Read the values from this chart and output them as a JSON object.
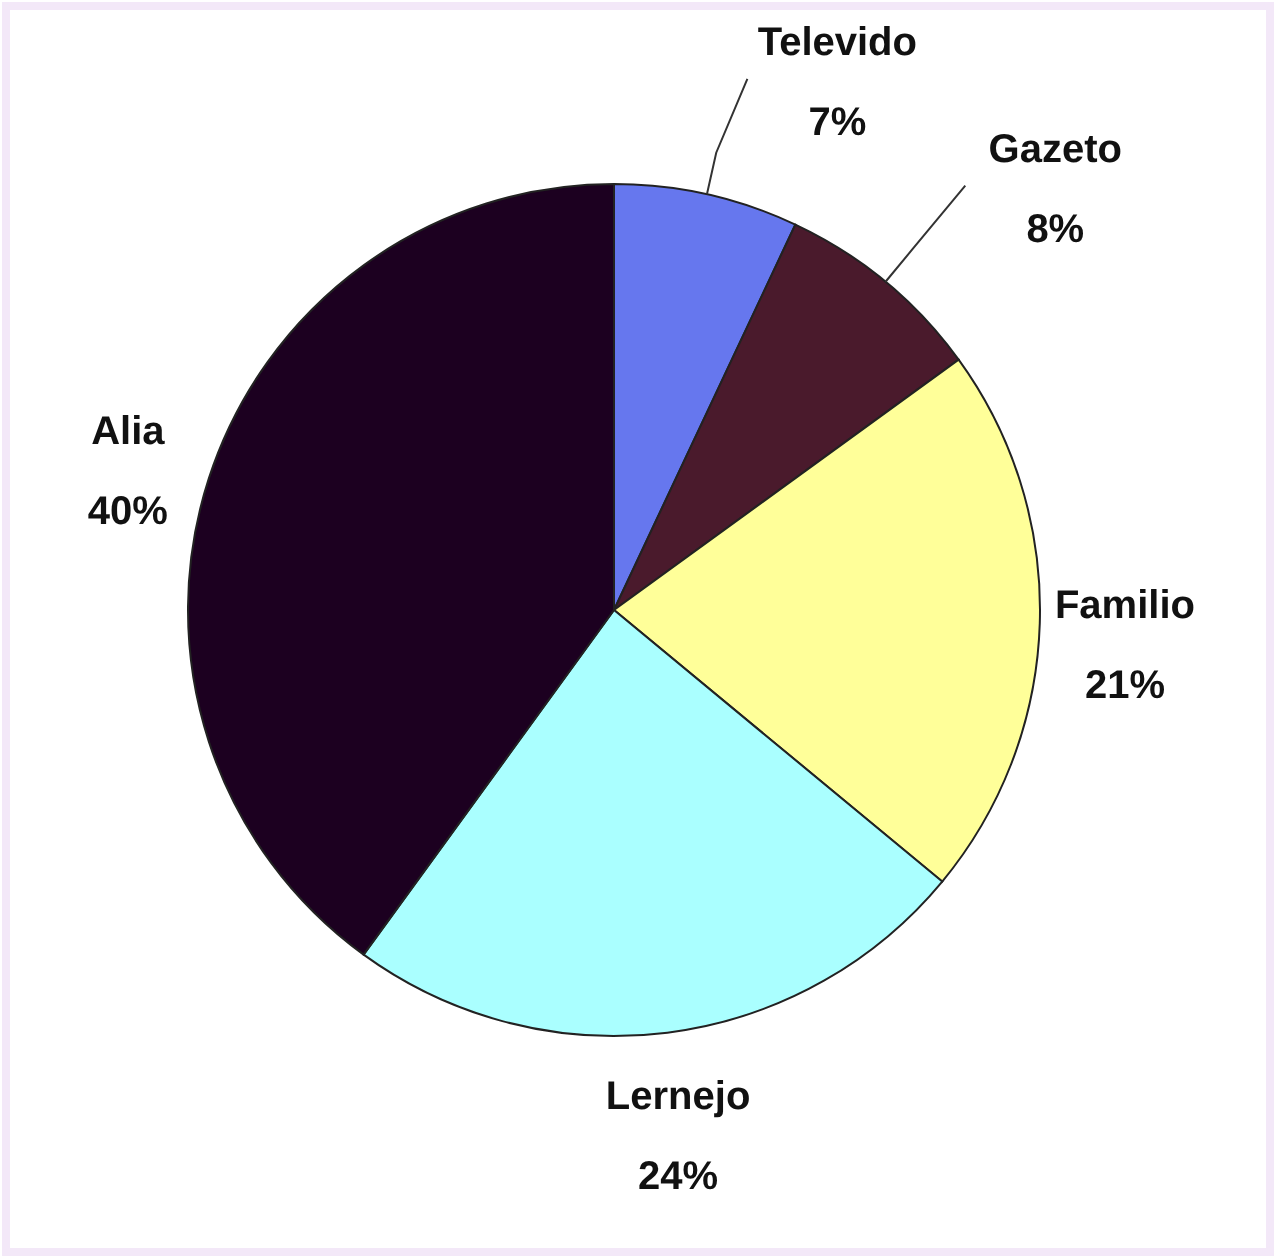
{
  "chart_data": {
    "type": "pie",
    "categories": [
      "Televido",
      "Gazeto",
      "Familio",
      "Lernejo",
      "Alia"
    ],
    "values": [
      7,
      8,
      21,
      24,
      40
    ],
    "colors": [
      "#6677ee",
      "#4a1a2c",
      "#ffff99",
      "#aaffff",
      "#1c0020"
    ],
    "value_labels": [
      "7%",
      "8%",
      "21%",
      "24%",
      "40%"
    ]
  }
}
